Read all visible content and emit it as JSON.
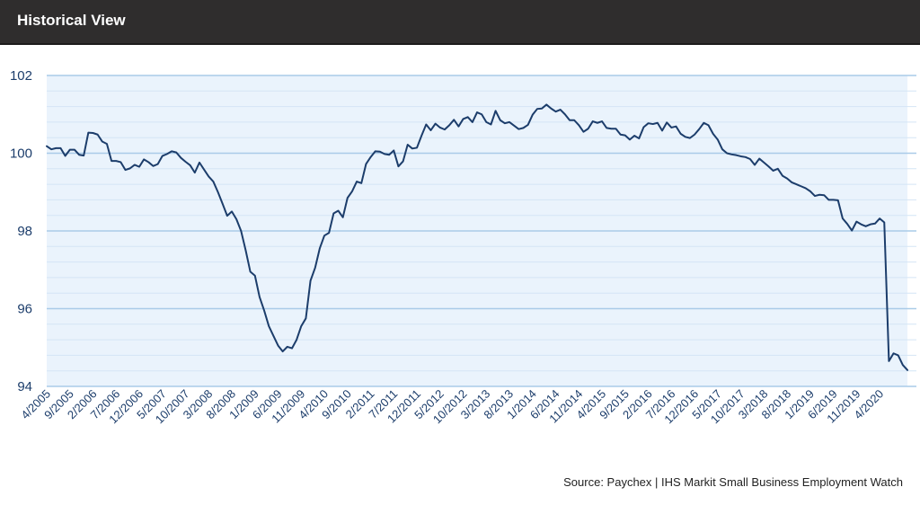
{
  "header": {
    "title": "Historical View"
  },
  "source": "Source: Paychex | IHS Markit Small Business Employment Watch",
  "colors": {
    "header_bg": "#2f2d2d",
    "plot_bg": "#eaf3fc",
    "grid_major": "#a9cbe8",
    "grid_minor": "#d4e5f5",
    "line": "#1c3d6b",
    "tick_text": "#1c3d6b"
  },
  "chart_data": {
    "type": "line",
    "title": "",
    "xlabel": "",
    "ylabel": "",
    "ylim": [
      94,
      102
    ],
    "yticks": [
      94,
      96,
      98,
      100,
      102
    ],
    "grid": true,
    "legend": "none",
    "x_tick_labels": [
      "4/2005",
      "9/2005",
      "2/2006",
      "7/2006",
      "12/2006",
      "5/2007",
      "10/2007",
      "3/2008",
      "8/2008",
      "1/2009",
      "6/2009",
      "11/2009",
      "4/2010",
      "9/2010",
      "2/2011",
      "7/2011",
      "12/2011",
      "5/2012",
      "10/2012",
      "3/2013",
      "8/2013",
      "1/2014",
      "6/2014",
      "11/2014",
      "4/2015",
      "9/2015",
      "2/2016",
      "7/2016",
      "12/2016",
      "5/2017",
      "10/2017",
      "3/2018",
      "8/2018",
      "1/2019",
      "6/2019",
      "11/2019",
      "4/2020"
    ],
    "series": [
      {
        "x_start": "4/2005",
        "interval": "monthly",
        "values": [
          100.18,
          100.1,
          100.13,
          100.13,
          99.93,
          100.09,
          100.09,
          99.96,
          99.94,
          100.53,
          100.52,
          100.48,
          100.3,
          100.24,
          99.8,
          99.8,
          99.77,
          99.57,
          99.61,
          99.7,
          99.65,
          99.84,
          99.77,
          99.67,
          99.72,
          99.93,
          99.98,
          100.05,
          100.02,
          99.88,
          99.78,
          99.69,
          99.5,
          99.76,
          99.58,
          99.4,
          99.27,
          99.0,
          98.7,
          98.39,
          98.5,
          98.3,
          98.0,
          97.5,
          96.95,
          96.85,
          96.3,
          95.95,
          95.55,
          95.3,
          95.05,
          94.9,
          95.02,
          94.98,
          95.2,
          95.55,
          95.75,
          96.72,
          97.05,
          97.55,
          97.88,
          97.95,
          98.45,
          98.52,
          98.35,
          98.85,
          99.02,
          99.27,
          99.23,
          99.72,
          99.9,
          100.05,
          100.04,
          99.98,
          99.96,
          100.07,
          99.66,
          99.79,
          100.22,
          100.12,
          100.14,
          100.45,
          100.74,
          100.59,
          100.76,
          100.66,
          100.61,
          100.72,
          100.86,
          100.69,
          100.88,
          100.93,
          100.8,
          101.05,
          101.0,
          100.8,
          100.74,
          101.09,
          100.85,
          100.77,
          100.8,
          100.71,
          100.62,
          100.65,
          100.73,
          100.99,
          101.14,
          101.15,
          101.25,
          101.15,
          101.07,
          101.12,
          101.0,
          100.85,
          100.85,
          100.72,
          100.55,
          100.63,
          100.82,
          100.78,
          100.82,
          100.65,
          100.63,
          100.63,
          100.48,
          100.46,
          100.35,
          100.45,
          100.38,
          100.67,
          100.77,
          100.75,
          100.78,
          100.58,
          100.79,
          100.66,
          100.69,
          100.5,
          100.42,
          100.39,
          100.48,
          100.62,
          100.78,
          100.72,
          100.5,
          100.35,
          100.1,
          100.0,
          99.97,
          99.95,
          99.92,
          99.9,
          99.85,
          99.7,
          99.86,
          99.76,
          99.66,
          99.55,
          99.6,
          99.42,
          99.35,
          99.25,
          99.2,
          99.15,
          99.1,
          99.02,
          98.9,
          98.93,
          98.92,
          98.8,
          98.8,
          98.79,
          98.32,
          98.18,
          98.01,
          98.24,
          98.17,
          98.12,
          98.17,
          98.19,
          98.32,
          98.22,
          94.65,
          94.85,
          94.8,
          94.55,
          94.42
        ]
      }
    ]
  }
}
